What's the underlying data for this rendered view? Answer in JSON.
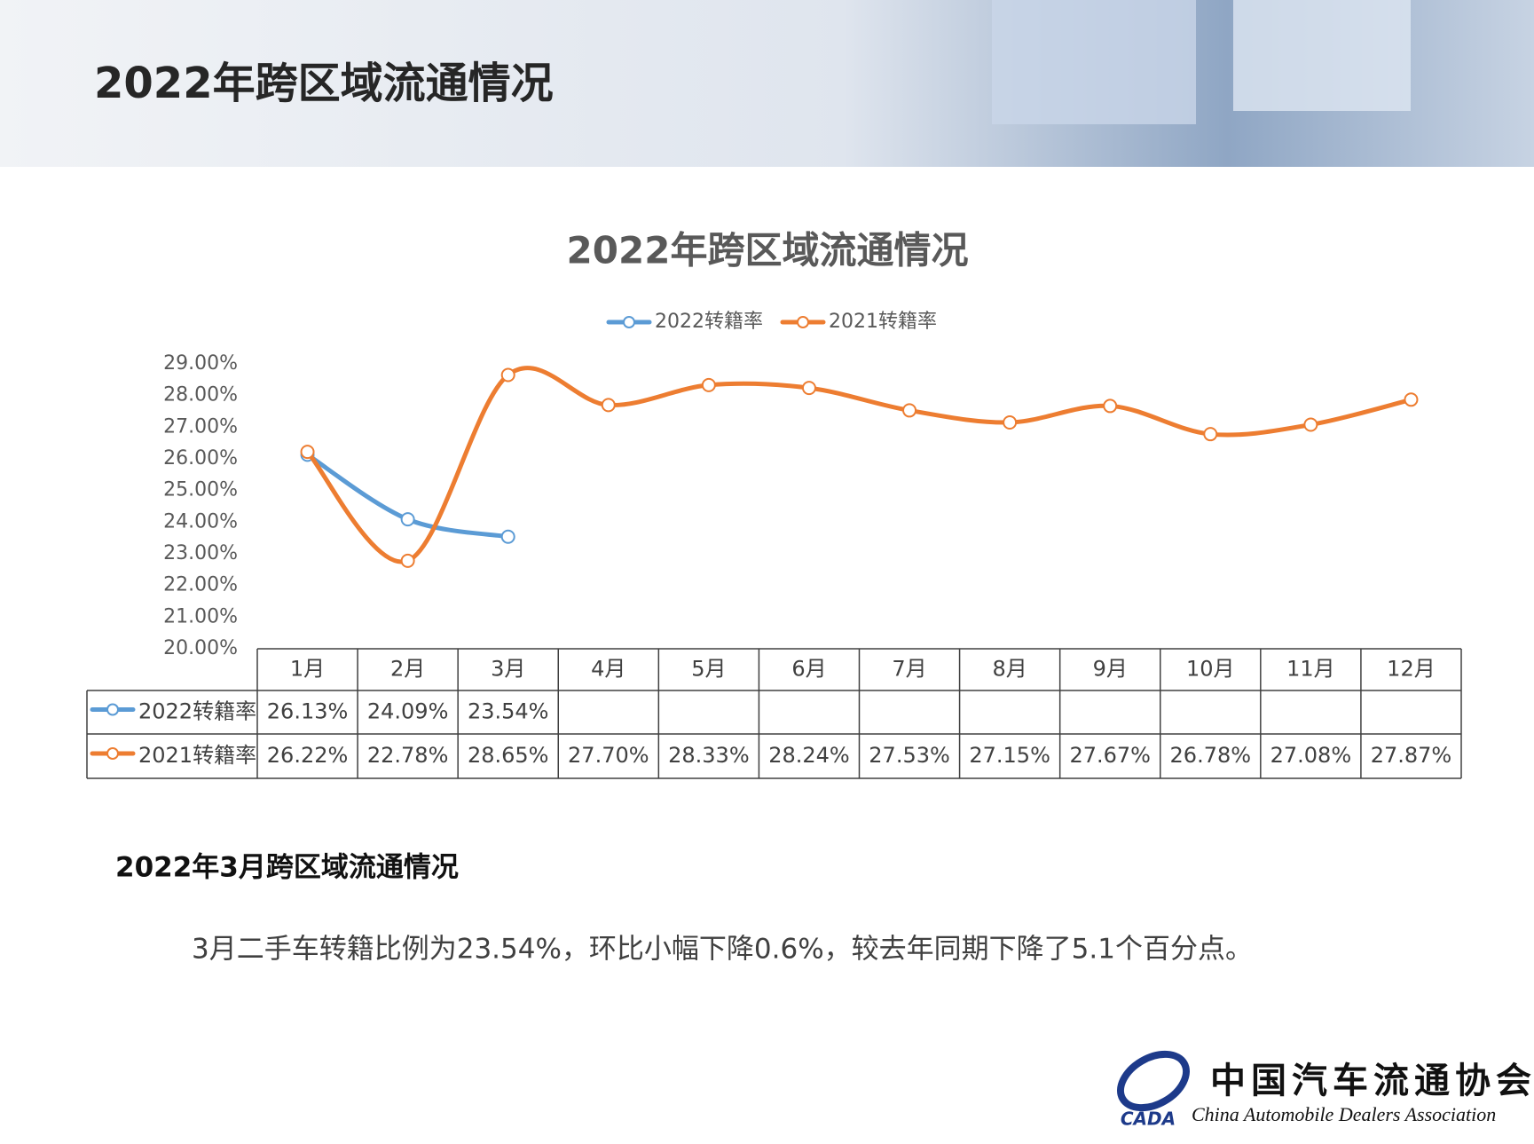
{
  "header": {
    "title": "2022年跨区域流通情况"
  },
  "chart_data": {
    "type": "line",
    "title": "2022年跨区域流通情况",
    "categories": [
      "1月",
      "2月",
      "3月",
      "4月",
      "5月",
      "6月",
      "7月",
      "8月",
      "9月",
      "10月",
      "11月",
      "12月"
    ],
    "series": [
      {
        "name": "2022转籍率",
        "color": "#5b9bd5",
        "values": [
          26.13,
          24.09,
          23.54,
          null,
          null,
          null,
          null,
          null,
          null,
          null,
          null,
          null
        ],
        "value_labels": [
          "26.13%",
          "24.09%",
          "23.54%",
          null,
          null,
          null,
          null,
          null,
          null,
          null,
          null,
          null
        ]
      },
      {
        "name": "2021转籍率",
        "color": "#ed7d31",
        "values": [
          26.22,
          22.78,
          28.65,
          27.7,
          28.33,
          28.24,
          27.53,
          27.15,
          27.67,
          26.78,
          27.08,
          27.87
        ],
        "value_labels": [
          "26.22%",
          "22.78%",
          "28.65%",
          "27.70%",
          "28.33%",
          "28.24%",
          "27.53%",
          "27.15%",
          "27.67%",
          "26.78%",
          "27.08%",
          "27.87%"
        ]
      }
    ],
    "ylim": [
      20,
      29
    ],
    "yticks": [
      {
        "value": 20,
        "label": "20.00%"
      },
      {
        "value": 21,
        "label": "21.00%"
      },
      {
        "value": 22,
        "label": "22.00%"
      },
      {
        "value": 23,
        "label": "23.00%"
      },
      {
        "value": 24,
        "label": "24.00%"
      },
      {
        "value": 25,
        "label": "25.00%"
      },
      {
        "value": 26,
        "label": "26.00%"
      },
      {
        "value": 27,
        "label": "27.00%"
      },
      {
        "value": 28,
        "label": "28.00%"
      },
      {
        "value": 29,
        "label": "29.00%"
      }
    ],
    "legend": "top",
    "smooth": true,
    "data_table": true
  },
  "section": {
    "heading": "2022年3月跨区域流通情况",
    "text": "3月二手车转籍比例为23.54%，环比小幅下降0.6%，较去年同期下降了5.1个百分点。"
  },
  "logo": {
    "name": "中国汽车流通协会",
    "abbr": "CADA",
    "english": "China Automobile Dealers Association"
  }
}
